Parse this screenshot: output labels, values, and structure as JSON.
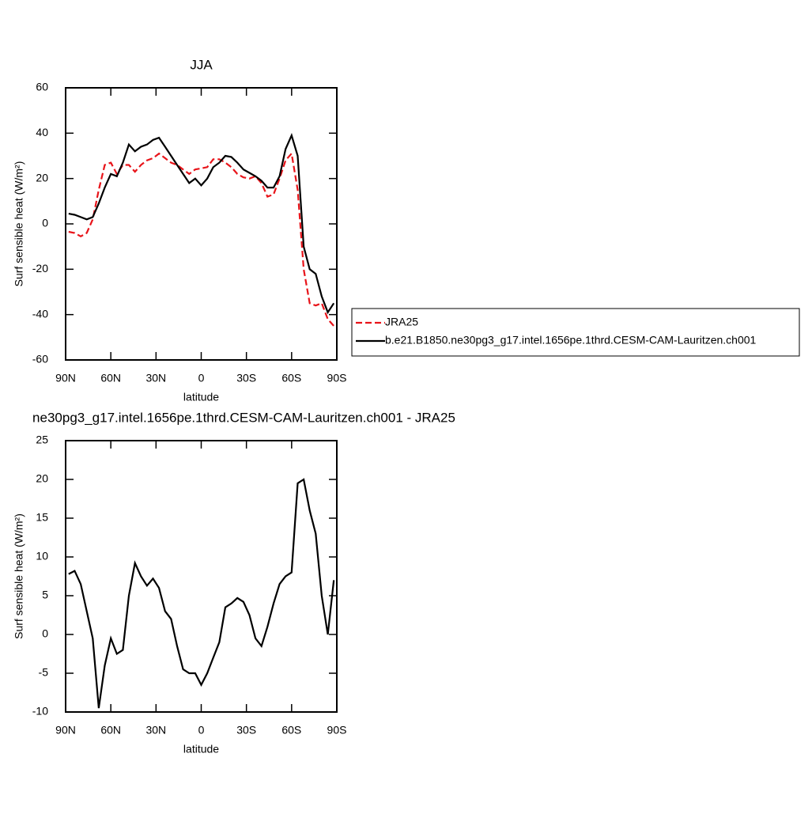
{
  "chart_data": [
    {
      "type": "line",
      "title": "JJA",
      "xlabel": "latitude",
      "ylabel": "Surf sensible heat (W/m²)",
      "x": [
        88,
        84,
        80,
        76,
        72,
        68,
        64,
        60,
        56,
        52,
        48,
        44,
        40,
        36,
        32,
        28,
        24,
        20,
        16,
        12,
        8,
        4,
        0,
        -4,
        -8,
        -12,
        -16,
        -20,
        -24,
        -28,
        -32,
        -36,
        -40,
        -44,
        -48,
        -52,
        -56,
        -60,
        -64,
        -68,
        -72,
        -76,
        -80,
        -84,
        -88
      ],
      "series": [
        {
          "name": "JRA25",
          "color": "#e8141a",
          "dash": "dashed",
          "values": [
            -3.5,
            -4,
            -5.5,
            -4,
            2,
            15,
            26,
            27,
            22,
            26,
            26,
            23,
            26,
            28,
            29,
            31,
            29,
            27,
            26,
            24,
            22,
            24,
            24.5,
            25,
            28.5,
            28.5,
            27,
            25,
            22,
            20.5,
            20,
            21,
            18,
            12,
            13,
            20,
            28,
            31,
            15,
            -20,
            -35,
            -36,
            -35,
            -42,
            -45
          ]
        },
        {
          "name": "b.e21.B1850.ne30pg3_g17.intel.1656pe.1thrd.CESM-CAM-Lauritzen.ch001",
          "color": "#000000",
          "dash": "solid",
          "values": [
            4.5,
            4,
            3,
            2,
            3,
            9,
            16,
            22,
            21,
            27,
            35,
            32,
            34,
            35,
            37,
            38,
            34,
            30,
            26,
            22,
            18,
            20,
            17,
            20,
            25,
            27,
            30,
            29.5,
            27,
            24,
            22.5,
            21,
            19,
            16,
            16,
            21,
            33,
            39,
            30,
            -10,
            -20,
            -22,
            -32,
            -39,
            -35
          ]
        }
      ],
      "xlim": [
        90,
        -90
      ],
      "xticks": [
        {
          "value": 90,
          "label": "90N"
        },
        {
          "value": 60,
          "label": "60N"
        },
        {
          "value": 30,
          "label": "30N"
        },
        0,
        {
          "value": -30,
          "label": "30S"
        },
        {
          "value": -60,
          "label": "60S"
        },
        {
          "value": -90,
          "label": "90S"
        }
      ],
      "ylim": [
        -60,
        60
      ],
      "yticks": [
        -60,
        -40,
        -20,
        0,
        20,
        40,
        60
      ],
      "legend": "right"
    },
    {
      "type": "line",
      "title": "ne30pg3_g17.intel.1656pe.1thrd.CESM-CAM-Lauritzen.ch001 - JRA25",
      "xlabel": "latitude",
      "ylabel": "Surf sensible heat (W/m²)",
      "x": [
        88,
        84,
        80,
        76,
        72,
        68,
        64,
        60,
        56,
        52,
        48,
        44,
        40,
        36,
        32,
        28,
        24,
        20,
        16,
        12,
        8,
        4,
        0,
        -4,
        -8,
        -12,
        -16,
        -20,
        -24,
        -28,
        -32,
        -36,
        -40,
        -44,
        -48,
        -52,
        -56,
        -60,
        -64,
        -68,
        -72,
        -76,
        -80,
        -84,
        -88
      ],
      "series": [
        {
          "color": "#000000",
          "dash": "solid",
          "values": [
            7.8,
            8.2,
            6.5,
            3,
            -0.5,
            -9.5,
            -4,
            -0.5,
            -2.5,
            -2,
            5,
            9.2,
            7.5,
            6.3,
            7.2,
            6,
            3,
            2,
            -1.5,
            -4.5,
            -5,
            -5,
            -6.5,
            -5,
            -3,
            -1,
            3.5,
            4,
            4.7,
            4.2,
            2.5,
            -0.5,
            -1.5,
            1,
            4,
            6.5,
            7.5,
            8,
            19.5,
            20,
            16,
            13,
            5,
            0,
            7
          ]
        }
      ],
      "xlim": [
        90,
        -90
      ],
      "xticks": [
        {
          "value": 90,
          "label": "90N"
        },
        {
          "value": 60,
          "label": "60N"
        },
        {
          "value": 30,
          "label": "30N"
        },
        0,
        {
          "value": -30,
          "label": "30S"
        },
        {
          "value": -60,
          "label": "60S"
        },
        {
          "value": -90,
          "label": "90S"
        }
      ],
      "ylim": [
        -10,
        25
      ],
      "yticks": [
        -10,
        -5,
        0,
        5,
        10,
        15,
        20,
        25
      ]
    }
  ]
}
